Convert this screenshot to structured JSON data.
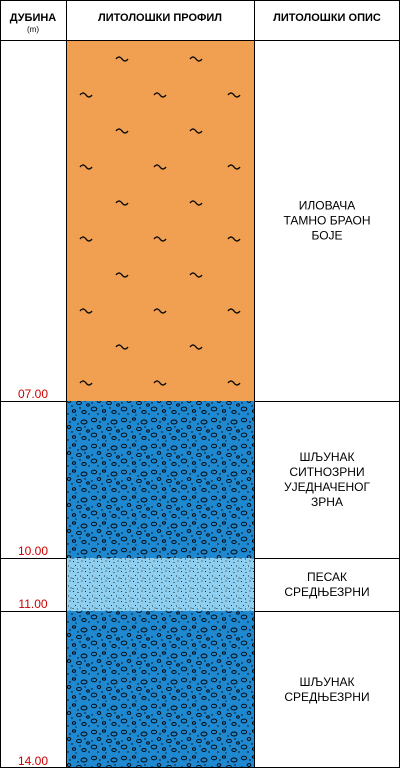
{
  "header": {
    "depth_label": "ДУБИНА",
    "depth_unit": "(m)",
    "profile_label": "ЛИТОЛОШКИ ПРОФИЛ",
    "description_label": "ЛИТОЛОШКИ ОПИС"
  },
  "colors": {
    "clay": "#f0a050",
    "gravel": "#1e88d0",
    "sand": "#8fd0f0",
    "depth_text": "#cc0000"
  },
  "layers": [
    {
      "name": "clay",
      "pattern": "clay",
      "bottom_depth": "07.00",
      "description": [
        "ИЛОВАЧА",
        "ТАМНО БРАОН",
        "БОЈЕ"
      ]
    },
    {
      "name": "fine-gravel",
      "pattern": "gravel",
      "bottom_depth": "10.00",
      "description": [
        "ШЉУНАК",
        "СИТНОЗРНИ",
        "УЈЕДНАЧЕНОГ",
        "ЗРНА"
      ]
    },
    {
      "name": "sand",
      "pattern": "sand",
      "bottom_depth": "11.00",
      "description": [
        "ПЕСАК",
        "СРЕДЊЕЗРНИ"
      ]
    },
    {
      "name": "medium-gravel",
      "pattern": "gravel",
      "bottom_depth": "14.00",
      "description": [
        "ШЉУНАК",
        "СРЕДЊЕЗРНИ"
      ]
    }
  ]
}
